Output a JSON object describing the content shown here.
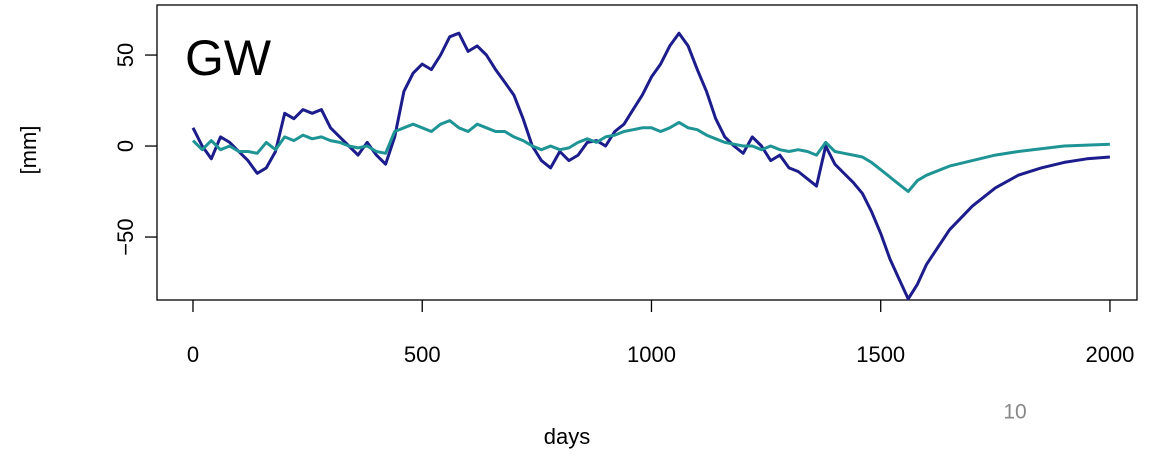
{
  "chart_data": {
    "type": "line",
    "annotation": "GW",
    "ylabel": "[mm]",
    "xlabel": "days",
    "page_number": "10",
    "x": [
      0,
      20,
      40,
      60,
      80,
      100,
      120,
      140,
      160,
      180,
      200,
      220,
      240,
      260,
      280,
      300,
      320,
      340,
      360,
      380,
      400,
      420,
      440,
      460,
      480,
      500,
      520,
      540,
      560,
      580,
      600,
      620,
      640,
      660,
      680,
      700,
      720,
      740,
      760,
      780,
      800,
      820,
      840,
      860,
      880,
      900,
      920,
      940,
      960,
      980,
      1000,
      1020,
      1040,
      1060,
      1080,
      1100,
      1120,
      1140,
      1160,
      1180,
      1200,
      1220,
      1240,
      1260,
      1280,
      1300,
      1320,
      1340,
      1360,
      1380,
      1400,
      1420,
      1440,
      1460,
      1480,
      1500,
      1520,
      1540,
      1560,
      1580,
      1600,
      1650,
      1700,
      1750,
      1800,
      1850,
      1900,
      1950,
      2000
    ],
    "series": [
      {
        "color": "#1c1c8c",
        "values": [
          10,
          0,
          -7,
          5,
          2,
          -3,
          -8,
          -15,
          -12,
          -3,
          18,
          15,
          20,
          18,
          20,
          10,
          5,
          0,
          -5,
          2,
          -5,
          -10,
          5,
          30,
          40,
          45,
          42,
          50,
          60,
          62,
          52,
          55,
          50,
          42,
          35,
          28,
          15,
          0,
          -8,
          -12,
          -3,
          -8,
          -5,
          2,
          3,
          0,
          8,
          12,
          20,
          28,
          38,
          45,
          55,
          62,
          55,
          42,
          30,
          15,
          5,
          0,
          -4,
          5,
          0,
          -8,
          -5,
          -12,
          -14,
          -18,
          -22,
          0,
          -10,
          -15,
          -20,
          -26,
          -36,
          -48,
          -62,
          -73,
          -84,
          -76,
          -65,
          -46,
          -33,
          -23,
          -16,
          -12,
          -9,
          -7,
          -6
        ]
      },
      {
        "color": "#1f9494",
        "values": [
          3,
          -2,
          3,
          -2,
          0,
          -3,
          -3,
          -4,
          2,
          -2,
          5,
          3,
          6,
          4,
          5,
          3,
          2,
          0,
          -1,
          0,
          -3,
          -4,
          8,
          10,
          12,
          10,
          8,
          12,
          14,
          10,
          8,
          12,
          10,
          8,
          8,
          5,
          3,
          0,
          -2,
          0,
          -2,
          -1,
          2,
          4,
          2,
          5,
          6,
          8,
          9,
          10,
          10,
          8,
          10,
          13,
          10,
          9,
          6,
          4,
          2,
          1,
          0,
          0,
          -2,
          0,
          -2,
          -3,
          -2,
          -3,
          -5,
          2,
          -3,
          -4,
          -5,
          -6,
          -9,
          -13,
          -17,
          -21,
          -25,
          -19,
          -16,
          -11,
          -8,
          -5,
          -3,
          -1.5,
          0,
          0.5,
          1
        ]
      }
    ],
    "xlim": [
      -78.5,
      2059
    ],
    "xticks": [
      0,
      500,
      1000,
      1500,
      2000
    ],
    "ylim": [
      -84.6,
      77.5
    ],
    "yticks": [
      {
        "value": -50,
        "label": "−50"
      },
      0,
      50
    ]
  }
}
